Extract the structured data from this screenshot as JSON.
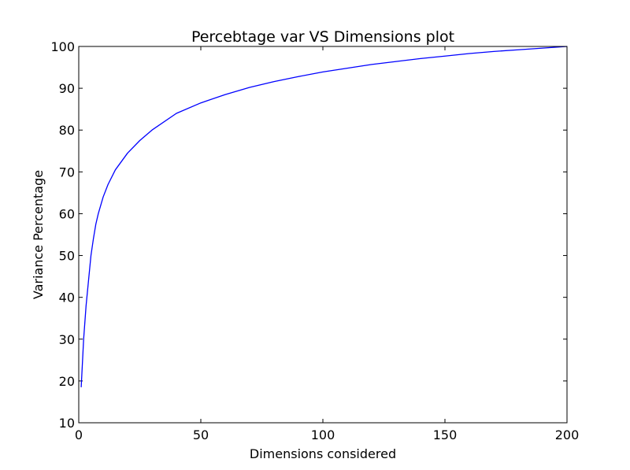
{
  "chart_data": {
    "type": "line",
    "title": "Percebtage var VS Dimensions plot",
    "xlabel": "Dimensions considered",
    "ylabel": "Variance Percentage",
    "xlim": [
      0,
      200
    ],
    "ylim": [
      10,
      100
    ],
    "xticks": [
      0,
      50,
      100,
      150,
      200
    ],
    "yticks": [
      10,
      20,
      30,
      40,
      50,
      60,
      70,
      80,
      90,
      100
    ],
    "grid": false,
    "series": [
      {
        "color": "#0000ff",
        "x": [
          1,
          2,
          3,
          4,
          5,
          6,
          7,
          8,
          10,
          12,
          15,
          20,
          25,
          30,
          40,
          50,
          60,
          70,
          80,
          90,
          100,
          110,
          120,
          130,
          140,
          150,
          160,
          170,
          180,
          190,
          200
        ],
        "y": [
          18.5,
          30,
          38,
          44,
          50,
          54,
          57.5,
          60,
          64,
          67,
          70.5,
          74.5,
          77.5,
          80,
          84,
          86.5,
          88.5,
          90.2,
          91.6,
          92.8,
          93.9,
          94.8,
          95.7,
          96.4,
          97.1,
          97.7,
          98.3,
          98.8,
          99.2,
          99.6,
          100
        ]
      }
    ]
  }
}
